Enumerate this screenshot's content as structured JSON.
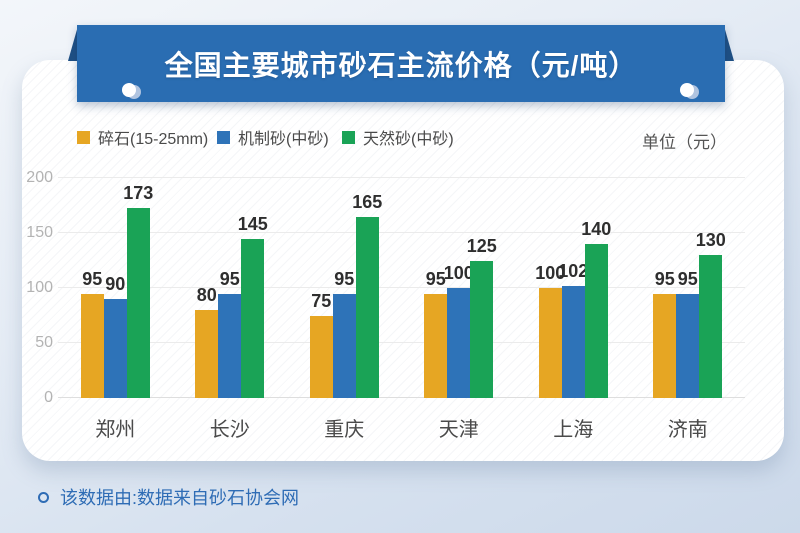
{
  "header": {
    "title": "全国主要城市砂石主流价格（元/吨）"
  },
  "legend": {
    "items": [
      {
        "label": "碎石(15-25mm)",
        "color": "#e6a623"
      },
      {
        "label": "机制砂(中砂)",
        "color": "#2e73b8"
      },
      {
        "label": "天然砂(中砂)",
        "color": "#1aa356"
      }
    ],
    "unit_label": "单位（元）"
  },
  "chart_data": {
    "type": "bar",
    "title": "全国主要城市砂石主流价格（元/吨）",
    "categories": [
      "郑州",
      "长沙",
      "重庆",
      "天津",
      "上海",
      "济南"
    ],
    "series": [
      {
        "name": "碎石(15-25mm)",
        "color": "#e6a623",
        "values": [
          95,
          80,
          75,
          95,
          100,
          95
        ]
      },
      {
        "name": "机制砂(中砂)",
        "color": "#2e73b8",
        "values": [
          90,
          95,
          95,
          100,
          102,
          95
        ]
      },
      {
        "name": "天然砂(中砂)",
        "color": "#1aa356",
        "values": [
          173,
          145,
          165,
          125,
          140,
          130
        ]
      }
    ],
    "xlabel": "",
    "ylabel": "",
    "ylim": [
      0,
      200
    ],
    "yticks": [
      0,
      50,
      100,
      150,
      200
    ],
    "grid": true,
    "legend_position": "top",
    "value_labels": true
  },
  "footer": {
    "text": "该数据由:数据来自砂石协会网"
  },
  "colors": {
    "banner": "#2a6db2",
    "banner_fold": "#1e4f84",
    "footer_text": "#2e6cb5",
    "background_top": "#f3f6fa",
    "background_bottom": "#ccd9ea"
  }
}
